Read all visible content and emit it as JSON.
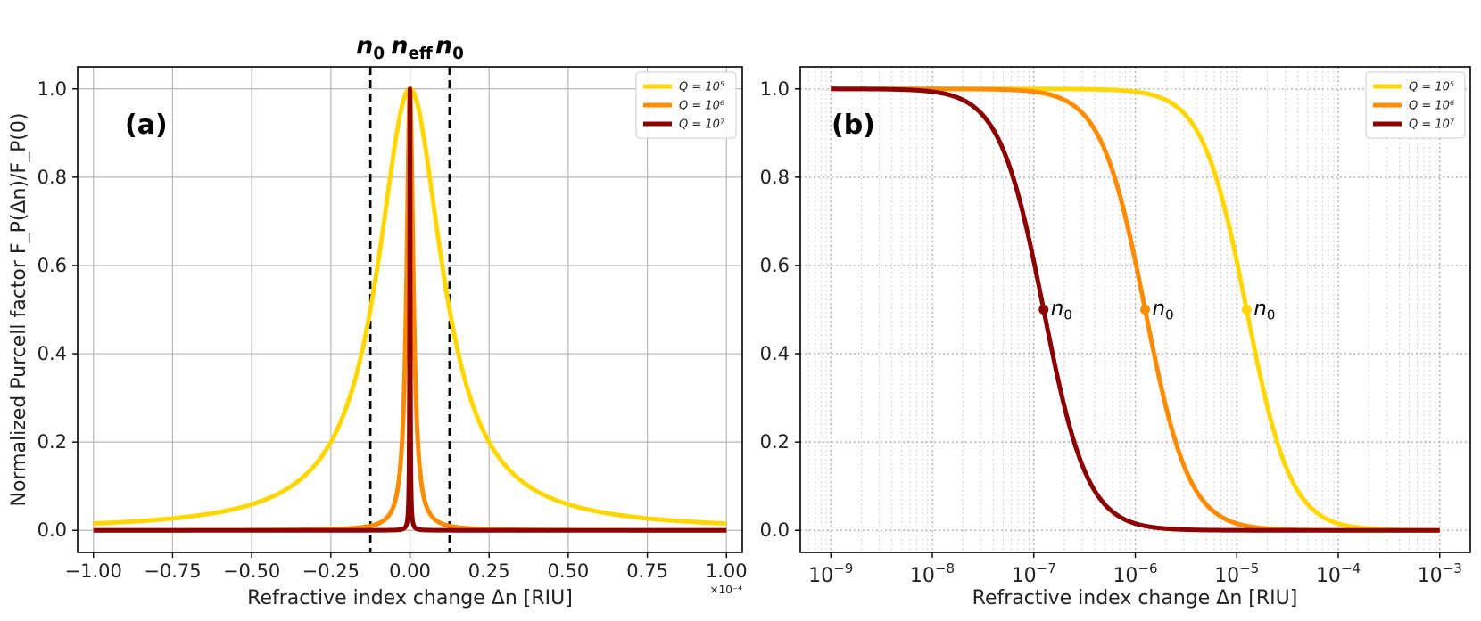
{
  "chart_data": [
    {
      "panel_label": "(a)",
      "type": "line",
      "xlabel": "Refractive index change Δn [RIU]",
      "ylabel": "Normalized Purcell factor F_P(Δn)/F_P(0)",
      "x_offset_text": "×10⁻⁴",
      "x_scale_factor": 0.0001,
      "xlim": [
        -1.05,
        1.05
      ],
      "ylim": [
        -0.05,
        1.05
      ],
      "x_ticks": [
        -1.0,
        -0.75,
        -0.5,
        -0.25,
        0.0,
        0.25,
        0.5,
        0.75,
        1.0
      ],
      "x_tick_labels": [
        "−1.00",
        "−0.75",
        "−0.50",
        "−0.25",
        "0.00",
        "0.25",
        "0.50",
        "0.75",
        "1.00"
      ],
      "y_ticks": [
        0.0,
        0.2,
        0.4,
        0.6,
        0.8,
        1.0
      ],
      "y_tick_labels": [
        "0.0",
        "0.2",
        "0.4",
        "0.6",
        "0.8",
        "1.0"
      ],
      "grid": "solid",
      "legend_position": "top-right",
      "series": [
        {
          "name": "Q = 10⁵",
          "color": "#ffd700",
          "half_width": 0.125,
          "x": [
            -1.0,
            -0.75,
            -0.5,
            -0.4,
            -0.3,
            -0.25,
            -0.2,
            -0.15,
            -0.125,
            -0.1,
            -0.075,
            -0.05,
            -0.025,
            0.0,
            0.025,
            0.05,
            0.075,
            0.1,
            0.125,
            0.15,
            0.2,
            0.25,
            0.3,
            0.4,
            0.5,
            0.75,
            1.0
          ],
          "y": [
            0.015,
            0.027,
            0.059,
            0.089,
            0.148,
            0.2,
            0.281,
            0.41,
            0.5,
            0.61,
            0.735,
            0.862,
            0.962,
            1.0,
            0.962,
            0.862,
            0.735,
            0.61,
            0.5,
            0.41,
            0.281,
            0.2,
            0.148,
            0.089,
            0.059,
            0.027,
            0.015
          ]
        },
        {
          "name": "Q = 10⁶",
          "color": "#ff8c00",
          "half_width": 0.0125,
          "x": [
            -1.0,
            -0.5,
            -0.2,
            -0.1,
            -0.06,
            -0.04,
            -0.03,
            -0.02,
            -0.0125,
            -0.008,
            -0.004,
            0.0,
            0.004,
            0.008,
            0.0125,
            0.02,
            0.03,
            0.04,
            0.06,
            0.1,
            0.2,
            0.5,
            1.0
          ],
          "y": [
            0.0,
            0.001,
            0.004,
            0.015,
            0.042,
            0.089,
            0.148,
            0.281,
            0.5,
            0.709,
            0.907,
            1.0,
            0.907,
            0.709,
            0.5,
            0.281,
            0.148,
            0.089,
            0.042,
            0.015,
            0.004,
            0.001,
            0.0
          ]
        },
        {
          "name": "Q = 10⁷",
          "color": "#8b0000",
          "half_width": 0.00125,
          "x": [
            -1.0,
            -0.1,
            -0.02,
            -0.01,
            -0.005,
            -0.003,
            -0.002,
            -0.00125,
            -0.0008,
            -0.0004,
            0.0,
            0.0004,
            0.0008,
            0.00125,
            0.002,
            0.003,
            0.005,
            0.01,
            0.02,
            0.1,
            1.0
          ],
          "y": [
            0.0,
            0.0,
            0.004,
            0.015,
            0.059,
            0.148,
            0.281,
            0.5,
            0.709,
            0.907,
            1.0,
            0.907,
            0.709,
            0.5,
            0.281,
            0.148,
            0.059,
            0.015,
            0.004,
            0.0,
            0.0
          ]
        }
      ],
      "annotations": [
        {
          "text": "n",
          "subscript": "0",
          "x": -0.125
        },
        {
          "text": "n",
          "subscript": "eff",
          "x": 0.0
        },
        {
          "text": "n",
          "subscript": "0",
          "x": 0.125
        }
      ],
      "vlines": [
        -0.125,
        0.125
      ]
    },
    {
      "panel_label": "(b)",
      "type": "line",
      "xscale": "log",
      "xlabel": "Refractive index change Δn [RIU]",
      "xlim": [
        5e-10,
        0.002
      ],
      "ylim": [
        -0.05,
        1.05
      ],
      "x_ticks": [
        1e-09,
        1e-08,
        1e-07,
        1e-06,
        1e-05,
        0.0001,
        0.001
      ],
      "x_tick_labels": [
        {
          "base": "10",
          "exp": "−9"
        },
        {
          "base": "10",
          "exp": "−8"
        },
        {
          "base": "10",
          "exp": "−7"
        },
        {
          "base": "10",
          "exp": "−6"
        },
        {
          "base": "10",
          "exp": "−5"
        },
        {
          "base": "10",
          "exp": "−4"
        },
        {
          "base": "10",
          "exp": "−3"
        }
      ],
      "y_ticks": [
        0.0,
        0.2,
        0.4,
        0.6,
        0.8,
        1.0
      ],
      "y_tick_labels": [
        "0.0",
        "0.2",
        "0.4",
        "0.6",
        "0.8",
        "1.0"
      ],
      "grid": "dotted",
      "legend_position": "top-right",
      "series": [
        {
          "name": "Q = 10⁵",
          "color": "#ffd700",
          "half_width": 1.25e-05,
          "x": [
            1e-09,
            1e-08,
            1e-07,
            1e-06,
            2e-06,
            3e-06,
            5e-06,
            7e-06,
            1e-05,
            1.25e-05,
            1.5e-05,
            2e-05,
            3e-05,
            5e-05,
            0.0001,
            0.0002,
            0.001
          ],
          "y": [
            1.0,
            1.0,
            1.0,
            0.999,
            0.975,
            0.946,
            0.862,
            0.761,
            0.61,
            0.5,
            0.41,
            0.281,
            0.148,
            0.059,
            0.015,
            0.004,
            0.0
          ]
        },
        {
          "name": "Q = 10⁶",
          "color": "#ff8c00",
          "half_width": 1.25e-06,
          "x": [
            1e-09,
            1e-08,
            1e-07,
            2e-07,
            3e-07,
            5e-07,
            7e-07,
            1e-06,
            1.25e-06,
            1.5e-06,
            2e-06,
            3e-06,
            5e-06,
            1e-05,
            2e-05,
            0.0001,
            0.001
          ],
          "y": [
            1.0,
            1.0,
            0.999,
            0.975,
            0.946,
            0.862,
            0.761,
            0.61,
            0.5,
            0.41,
            0.281,
            0.148,
            0.059,
            0.015,
            0.004,
            0.0,
            0.0
          ]
        },
        {
          "name": "Q = 10⁷",
          "color": "#8b0000",
          "half_width": 1.25e-07,
          "x": [
            1e-09,
            1e-08,
            2e-08,
            3e-08,
            5e-08,
            7e-08,
            1e-07,
            1.25e-07,
            1.5e-07,
            2e-07,
            3e-07,
            5e-07,
            1e-06,
            2e-06,
            1e-05,
            0.0001,
            0.001
          ],
          "y": [
            1.0,
            0.999,
            0.975,
            0.946,
            0.862,
            0.761,
            0.61,
            0.5,
            0.41,
            0.281,
            0.148,
            0.059,
            0.015,
            0.004,
            0.0,
            0.0,
            0.0
          ]
        }
      ],
      "markers": [
        {
          "series": "Q = 10⁷",
          "x": 1.25e-07,
          "y": 0.5,
          "text": "n",
          "subscript": "0"
        },
        {
          "series": "Q = 10⁶",
          "x": 1.25e-06,
          "y": 0.5,
          "text": "n",
          "subscript": "0"
        },
        {
          "series": "Q = 10⁵",
          "x": 1.25e-05,
          "y": 0.5,
          "text": "n",
          "subscript": "0"
        }
      ]
    }
  ]
}
